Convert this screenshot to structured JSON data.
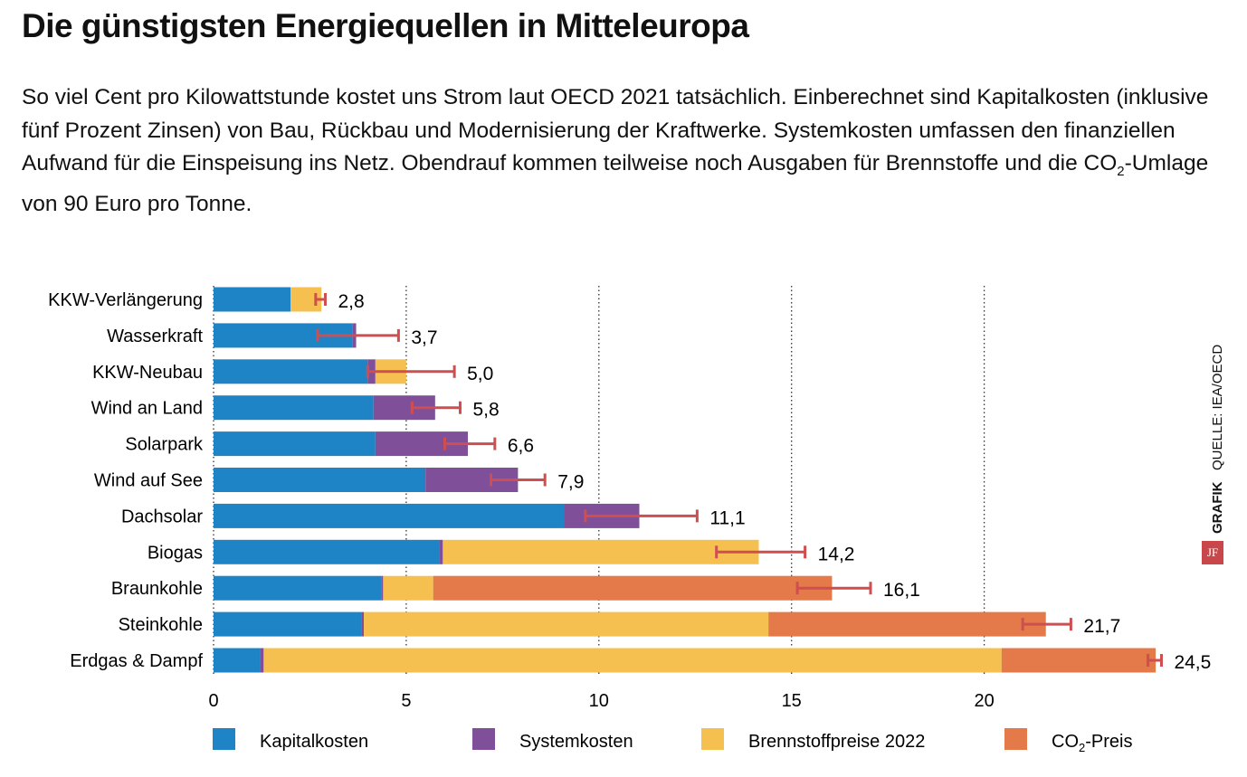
{
  "title": "Die günstigsten Energiequellen in Mitteleuropa",
  "subtitle_parts": [
    "So viel Cent pro Kilowattstunde kostet uns Strom laut OECD 2021 tatsächlich. Einberechnet sind Kapitalkosten (inklusive fünf Prozent Zinsen) von Bau, Rückbau und Modernisierung der Kraftwerke. Systemkosten umfassen den finanziellen Aufwand für die Einspeisung ins Netz. Obendrauf kommen teilweise noch Ausgaben für Brennstoffe und die CO",
    "2",
    "-Umlage von 90 Euro pro Tonne."
  ],
  "source": "QUELLE: IEA/OECD",
  "credit": "GRAFIK",
  "logo": "JF",
  "colors": {
    "Kapitalkosten": "#1e84c6",
    "Systemkosten": "#7f4f9a",
    "Brennstoffpreise 2022": "#f5c04f",
    "CO2-Preis": "#e4794a",
    "error": "#cf4e50"
  },
  "chart_data": {
    "type": "bar",
    "orientation": "horizontal",
    "stacked": true,
    "categories": [
      "KKW-Verlängerung",
      "Wasserkraft",
      "KKW-Neubau",
      "Wind an Land",
      "Solarpark",
      "Wind auf See",
      "Dachsolar",
      "Biogas",
      "Braunkohle",
      "Steinkohle",
      "Erdgas & Dampf"
    ],
    "series": [
      {
        "name": "Kapitalkosten",
        "values": [
          2.0,
          3.6,
          4.0,
          4.15,
          4.2,
          5.5,
          9.1,
          5.85,
          4.35,
          3.85,
          1.2
        ]
      },
      {
        "name": "Systemkosten",
        "values": [
          0,
          0.1,
          0.2,
          1.6,
          2.4,
          2.4,
          1.95,
          0.1,
          0.05,
          0.05,
          0.1
        ]
      },
      {
        "name": "Brennstoffpreise 2022",
        "values": [
          0.8,
          0,
          0.8,
          0,
          0,
          0,
          0,
          8.2,
          1.3,
          10.5,
          19.15
        ]
      },
      {
        "name": "CO2-Preis",
        "legend_label": [
          "CO",
          "2",
          "-Preis"
        ],
        "values": [
          0,
          0,
          0,
          0,
          0,
          0,
          0,
          0,
          10.35,
          7.2,
          4.0
        ]
      }
    ],
    "data_labels": [
      "2,8",
      "3,7",
      "5,0",
      "5,8",
      "6,6",
      "7,9",
      "11,1",
      "14,2",
      "16,1",
      "21,7",
      "24,5"
    ],
    "error_ranges": [
      [
        2.65,
        2.9
      ],
      [
        2.7,
        4.8
      ],
      [
        4.0,
        6.25
      ],
      [
        5.15,
        6.4
      ],
      [
        6.0,
        7.3
      ],
      [
        7.2,
        8.6
      ],
      [
        9.65,
        12.55
      ],
      [
        13.05,
        15.35
      ],
      [
        15.15,
        17.05
      ],
      [
        21.0,
        22.25
      ],
      [
        24.25,
        24.6
      ]
    ],
    "xticks": [
      0,
      5,
      10,
      15,
      20
    ],
    "xlim": [
      0,
      25.5
    ],
    "grid": "vertical dotted",
    "legend": "bottom"
  }
}
